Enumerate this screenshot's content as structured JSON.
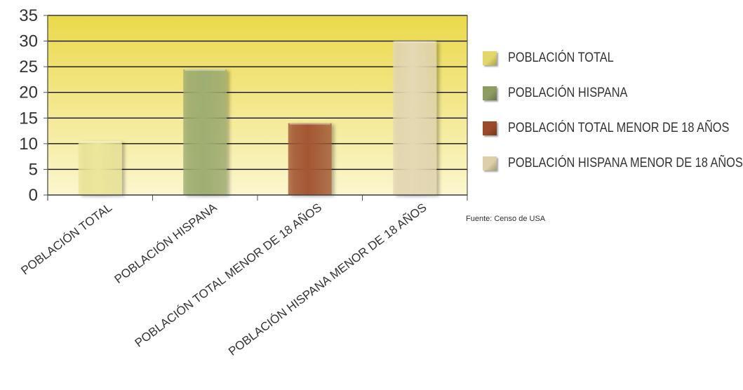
{
  "chart_data": {
    "type": "bar",
    "title": "",
    "xlabel": "",
    "ylabel": "",
    "ylim": [
      0,
      35
    ],
    "yticks": [
      0,
      5,
      10,
      15,
      20,
      25,
      30,
      35
    ],
    "grid": true,
    "legend_position": "right",
    "categories": [
      "POBLACIÓN TOTAL",
      "POBLACIÓN HISPANA",
      "POBLACIÓN TOTAL MENOR DE 18 AÑOS",
      "POBLACIÓN HISPANA MENOR DE 18 AÑOS"
    ],
    "values": [
      10.5,
      24.5,
      14,
      30
    ],
    "bar_colors": [
      "#ece69a",
      "#9fae72",
      "#a45733",
      "#e5d9b4"
    ],
    "legend": [
      "POBLACIÓN TOTAL",
      "POBLACIÓN HISPANA",
      "POBLACIÓN TOTAL MENOR DE 18 AÑOS",
      "POBLACIÓN HISPANA MENOR DE 18 AÑOS"
    ],
    "legend_colors": [
      "#e3d76a",
      "#8e9c61",
      "#9b4a2a",
      "#ddd0a8"
    ],
    "plot_background": {
      "top": "#ebd94a",
      "bottom": "#fbf6cf"
    }
  },
  "source": "Fuente: Censo de USA"
}
